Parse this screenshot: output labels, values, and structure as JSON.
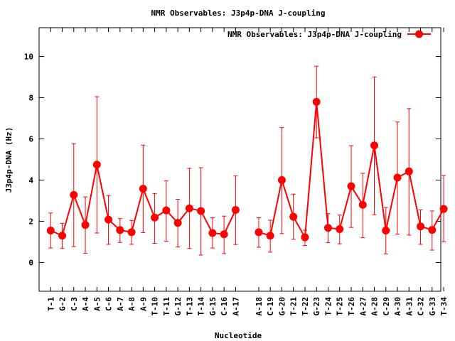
{
  "chart_data": {
    "type": "line",
    "title": "NMR Observables: J3p4p-DNA J-coupling",
    "xlabel": "Nucleotide",
    "ylabel": "J3p4p-DNA (Hz)",
    "ylim": [
      -1.4,
      11.4
    ],
    "yticks": [
      0,
      2,
      4,
      6,
      8,
      10
    ],
    "xlim": [
      0,
      34.75
    ],
    "grid": false,
    "legend_position": "top-right",
    "series_color": "#ff0000",
    "categories": [
      "T-1",
      "G-2",
      "C-3",
      "A-4",
      "A-5",
      "C-6",
      "A-7",
      "A-8",
      "A-9",
      "T-10",
      "T-11",
      "G-12",
      "T-13",
      "T-14",
      "G-15",
      "C-16",
      "A-17",
      "A-18",
      "C-19",
      "G-20",
      "T-21",
      "T-22",
      "G-23",
      "T-24",
      "T-25",
      "T-26",
      "A-27",
      "A-28",
      "C-29",
      "A-30",
      "A-31",
      "C-32",
      "G-33",
      "T-34"
    ],
    "x": [
      1,
      2,
      3,
      4,
      5,
      6,
      7,
      8,
      9,
      10,
      11,
      12,
      13,
      14,
      15,
      16,
      17,
      19,
      20,
      21,
      22,
      23,
      24,
      25,
      26,
      27,
      28,
      29,
      30,
      31,
      32,
      33,
      34,
      35
    ],
    "segments": [
      [
        0,
        16
      ],
      [
        17,
        33
      ]
    ],
    "series": [
      {
        "name": "NMR Observables: J3p4p-DNA J-coupling",
        "values": [
          1.55,
          1.3,
          3.28,
          1.82,
          4.75,
          2.08,
          1.57,
          1.47,
          3.58,
          2.18,
          2.53,
          1.92,
          2.63,
          2.5,
          1.43,
          1.37,
          2.55,
          1.47,
          1.3,
          4.0,
          2.22,
          1.22,
          7.8,
          1.68,
          1.62,
          3.7,
          2.8,
          5.68,
          1.55,
          4.12,
          4.42,
          1.75,
          1.58,
          2.6
        ],
        "err_low": [
          0.7,
          0.68,
          0.77,
          0.45,
          1.43,
          0.88,
          0.97,
          0.88,
          1.45,
          0.93,
          1.03,
          0.75,
          0.68,
          0.36,
          0.7,
          0.43,
          0.87,
          0.74,
          0.5,
          1.4,
          1.13,
          0.82,
          6.05,
          0.96,
          0.9,
          1.7,
          1.2,
          2.32,
          0.41,
          1.38,
          1.33,
          0.88,
          0.6,
          1.0
        ],
        "err_high": [
          2.4,
          1.9,
          5.77,
          3.18,
          8.05,
          3.25,
          2.13,
          2.04,
          5.7,
          3.35,
          3.96,
          3.07,
          4.57,
          4.6,
          2.17,
          2.25,
          4.2,
          2.17,
          2.05,
          6.55,
          3.32,
          1.57,
          9.53,
          2.37,
          2.3,
          5.67,
          4.33,
          9.01,
          2.67,
          6.82,
          7.47,
          2.55,
          2.5,
          4.22
        ]
      }
    ]
  }
}
